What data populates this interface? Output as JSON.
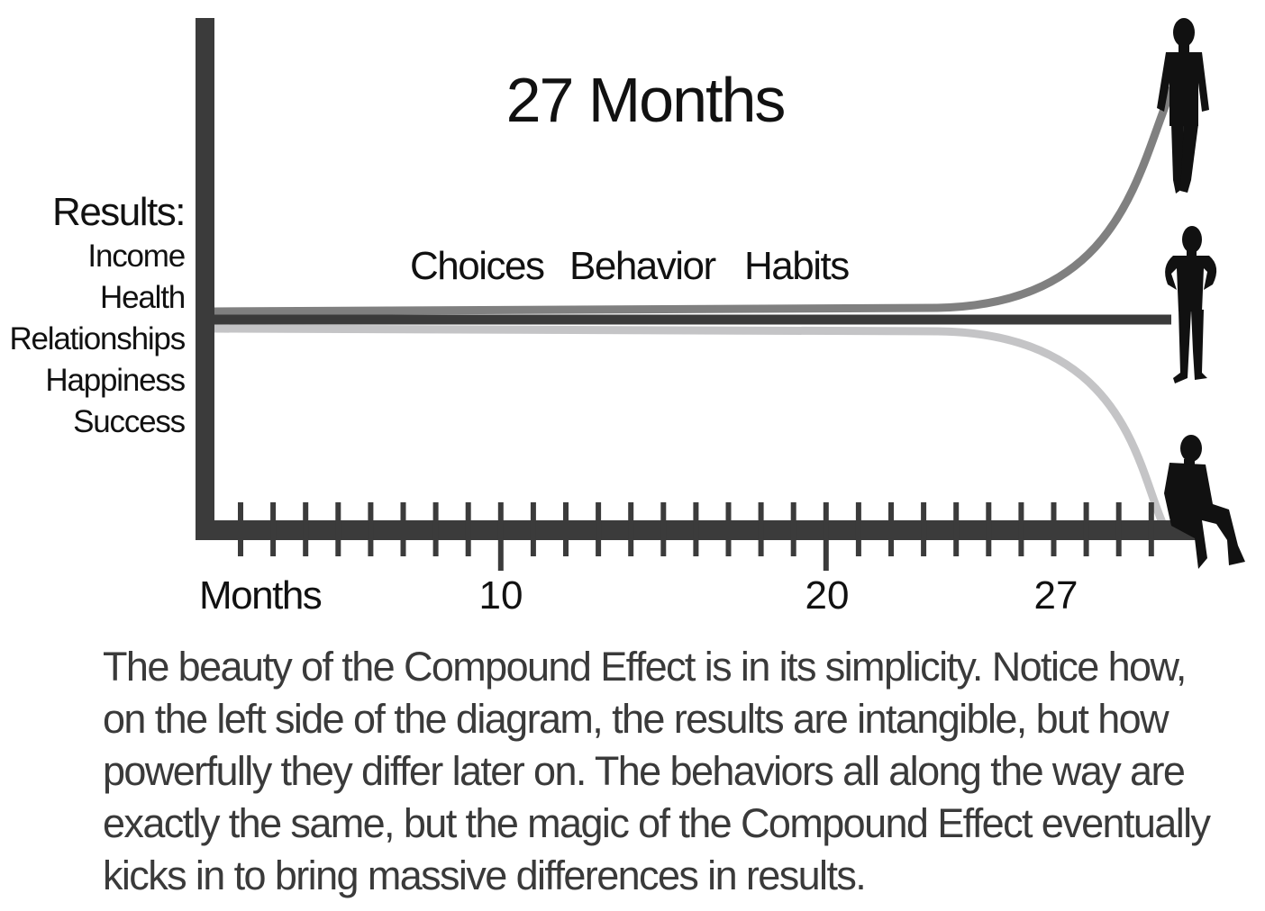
{
  "diagram": {
    "title": "27 Months",
    "results": {
      "heading": "Results:",
      "items": [
        "Income",
        "Health",
        "Relationships",
        "Happiness",
        "Success"
      ]
    },
    "stages": [
      "Choices",
      "Behavior",
      "Habits"
    ],
    "x_axis": {
      "label": "Months",
      "ticks": [
        "10",
        "20",
        "27"
      ]
    },
    "colors": {
      "axis": "#3b3b3b",
      "upper_path": "#808080",
      "baseline_path": "#3b3b3b",
      "lower_path": "#c4c4c6",
      "silhouette": "#111111"
    },
    "figures": [
      "standing-man-icon",
      "hands-on-hips-man-icon",
      "sitting-man-icon"
    ]
  },
  "caption": "The beauty of the Compound Effect is in its simplicity. Notice how, on the left side of the diagram, the results are intangible, but how powerfully they differ later on. The behaviors all along the way are exactly the same, but the magic of the Compound Effect eventually kicks in to bring massive differences in results."
}
